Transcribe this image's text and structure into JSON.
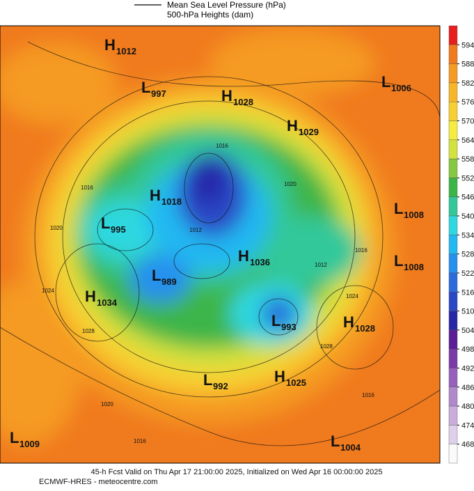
{
  "legend": [
    "Mean Sea Level Pressure (hPa)",
    "500-hPa Heights (dam)"
  ],
  "colorbar": {
    "ticks": [
      594,
      588,
      582,
      576,
      570,
      564,
      558,
      552,
      546,
      540,
      534,
      528,
      522,
      516,
      510,
      504,
      498,
      492,
      486,
      480,
      474,
      468
    ],
    "colors": [
      "#e81e1e",
      "#f07a1e",
      "#f59a22",
      "#f7b52a",
      "#f8cf30",
      "#f6ec40",
      "#d2e23e",
      "#86c840",
      "#3cb548",
      "#32c89a",
      "#2ed8e0",
      "#22b8f2",
      "#2690ee",
      "#2a6cdc",
      "#2a48c6",
      "#2626a8",
      "#5a1e96",
      "#7a3aa8",
      "#9660bc",
      "#b088cc",
      "#c8acdc",
      "#ded0ea",
      "#fafafa"
    ]
  },
  "centers": [
    {
      "letter": "H",
      "value": 1012
    },
    {
      "letter": "L",
      "value": 997
    },
    {
      "letter": "H",
      "value": 1028
    },
    {
      "letter": "L",
      "value": 1006
    },
    {
      "letter": "H",
      "value": 1029
    },
    {
      "letter": "H",
      "value": 1018
    },
    {
      "letter": "L",
      "value": 995
    },
    {
      "letter": "L",
      "value": 1008
    },
    {
      "letter": "H",
      "value": 1036
    },
    {
      "letter": "L",
      "value": 1008
    },
    {
      "letter": "L",
      "value": 989
    },
    {
      "letter": "H",
      "value": 1034
    },
    {
      "letter": "L",
      "value": 993
    },
    {
      "letter": "H",
      "value": 1028
    },
    {
      "letter": "L",
      "value": 992
    },
    {
      "letter": "H",
      "value": 1025
    },
    {
      "letter": "L",
      "value": 1009
    },
    {
      "letter": "L",
      "value": 1004
    }
  ],
  "contour_labels": [
    1016,
    1020,
    1016,
    1020,
    1024,
    1028,
    1024,
    1028,
    1016,
    1020,
    1016,
    1012,
    1012,
    1016
  ],
  "footer": [
    "45-h Fcst Valid on Thu Apr 17 21:00:00 2025, Initialized on Wed Apr 16 00:00:00 2025",
    "ECMWF-HRES - meteocentre.com"
  ]
}
